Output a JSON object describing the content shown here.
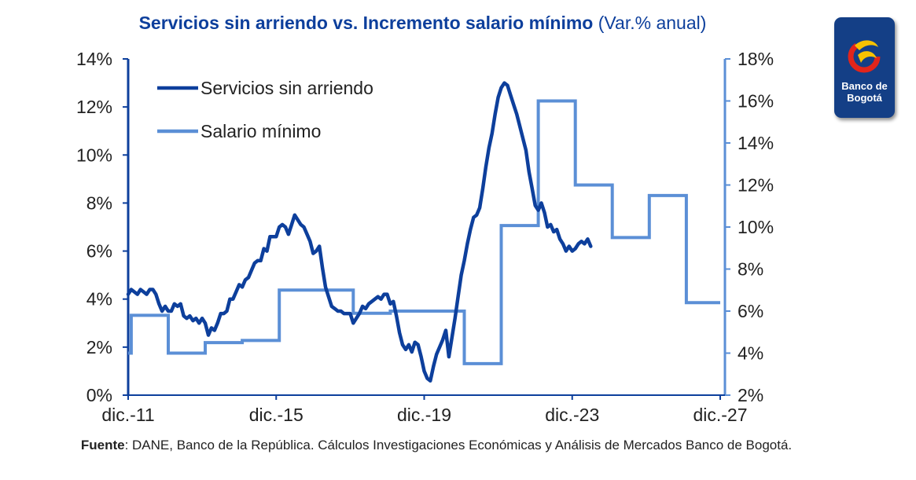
{
  "title": {
    "main": "Servicios sin arriendo vs. Incremento salario mínimo",
    "suffix": "(Var.% anual)"
  },
  "logo": {
    "name": "Banco de\nBogotá",
    "colors": {
      "background": "#143f86",
      "red": "#e1251b",
      "yellow": "#f7c200"
    }
  },
  "source": {
    "label": "Fuente",
    "text": ": DANE, Banco de la República. Cálculos Investigaciones Económicas y Análisis de Mercados Banco de Bogotá."
  },
  "chart_data": {
    "type": "line",
    "x_ticks": [
      "dic.-11",
      "dic.-15",
      "dic.-19",
      "dic.-23",
      "dic.-27"
    ],
    "x_range": [
      "2011-12",
      "2027-12"
    ],
    "y_left": {
      "ticks": [
        "0%",
        "2%",
        "4%",
        "6%",
        "8%",
        "10%",
        "12%",
        "14%"
      ],
      "range": [
        0,
        14
      ]
    },
    "y_right": {
      "ticks": [
        "2%",
        "4%",
        "6%",
        "8%",
        "10%",
        "12%",
        "14%",
        "16%",
        "18%"
      ],
      "range": [
        2,
        18
      ]
    },
    "legend": {
      "position": "top-left",
      "entries": [
        "Servicios sin arriendo",
        "Salario mínimo"
      ]
    },
    "grid": false,
    "colors": {
      "servicios": "#0d3f9c",
      "salario": "#5b8fd6",
      "axis_left": "#0d3f9c",
      "axis_right": "#5b8fd6"
    },
    "series": [
      {
        "name": "Servicios sin arriendo",
        "axis": "left",
        "points": [
          [
            "2011-12",
            4.2
          ],
          [
            "2012-01",
            4.4
          ],
          [
            "2012-02",
            4.3
          ],
          [
            "2012-03",
            4.2
          ],
          [
            "2012-04",
            4.4
          ],
          [
            "2012-05",
            4.3
          ],
          [
            "2012-06",
            4.2
          ],
          [
            "2012-07",
            4.4
          ],
          [
            "2012-08",
            4.4
          ],
          [
            "2012-09",
            4.2
          ],
          [
            "2012-10",
            3.8
          ],
          [
            "2012-11",
            3.5
          ],
          [
            "2012-12",
            3.7
          ],
          [
            "2013-01",
            3.5
          ],
          [
            "2013-02",
            3.5
          ],
          [
            "2013-03",
            3.8
          ],
          [
            "2013-04",
            3.7
          ],
          [
            "2013-05",
            3.8
          ],
          [
            "2013-06",
            3.3
          ],
          [
            "2013-07",
            3.2
          ],
          [
            "2013-08",
            3.3
          ],
          [
            "2013-09",
            3.1
          ],
          [
            "2013-10",
            3.2
          ],
          [
            "2013-11",
            3.0
          ],
          [
            "2013-12",
            3.2
          ],
          [
            "2014-01",
            3.0
          ],
          [
            "2014-02",
            2.5
          ],
          [
            "2014-03",
            2.8
          ],
          [
            "2014-04",
            2.7
          ],
          [
            "2014-05",
            3.0
          ],
          [
            "2014-06",
            3.4
          ],
          [
            "2014-07",
            3.4
          ],
          [
            "2014-08",
            3.5
          ],
          [
            "2014-09",
            4.0
          ],
          [
            "2014-10",
            4.0
          ],
          [
            "2014-11",
            4.3
          ],
          [
            "2014-12",
            4.6
          ],
          [
            "2015-01",
            4.5
          ],
          [
            "2015-02",
            4.8
          ],
          [
            "2015-03",
            4.9
          ],
          [
            "2015-04",
            5.2
          ],
          [
            "2015-05",
            5.5
          ],
          [
            "2015-06",
            5.6
          ],
          [
            "2015-07",
            5.6
          ],
          [
            "2015-08",
            6.1
          ],
          [
            "2015-09",
            6.0
          ],
          [
            "2015-10",
            6.6
          ],
          [
            "2015-11",
            6.6
          ],
          [
            "2015-12",
            6.6
          ],
          [
            "2016-01",
            7.0
          ],
          [
            "2016-02",
            7.1
          ],
          [
            "2016-03",
            7.0
          ],
          [
            "2016-04",
            6.7
          ],
          [
            "2016-05",
            7.1
          ],
          [
            "2016-06",
            7.5
          ],
          [
            "2016-07",
            7.3
          ],
          [
            "2016-08",
            7.1
          ],
          [
            "2016-09",
            7.0
          ],
          [
            "2016-10",
            6.7
          ],
          [
            "2016-11",
            6.4
          ],
          [
            "2016-12",
            5.9
          ],
          [
            "2017-01",
            6.0
          ],
          [
            "2017-02",
            6.2
          ],
          [
            "2017-03",
            5.3
          ],
          [
            "2017-04",
            4.5
          ],
          [
            "2017-05",
            4.1
          ],
          [
            "2017-06",
            3.7
          ],
          [
            "2017-07",
            3.6
          ],
          [
            "2017-08",
            3.5
          ],
          [
            "2017-09",
            3.5
          ],
          [
            "2017-10",
            3.4
          ],
          [
            "2017-11",
            3.4
          ],
          [
            "2017-12",
            3.4
          ],
          [
            "2018-01",
            3.0
          ],
          [
            "2018-02",
            3.2
          ],
          [
            "2018-03",
            3.4
          ],
          [
            "2018-04",
            3.7
          ],
          [
            "2018-05",
            3.6
          ],
          [
            "2018-06",
            3.8
          ],
          [
            "2018-07",
            3.9
          ],
          [
            "2018-08",
            4.0
          ],
          [
            "2018-09",
            4.1
          ],
          [
            "2018-10",
            4.0
          ],
          [
            "2018-11",
            4.2
          ],
          [
            "2018-12",
            4.2
          ],
          [
            "2019-01",
            3.8
          ],
          [
            "2019-02",
            3.9
          ],
          [
            "2019-03",
            3.3
          ],
          [
            "2019-04",
            2.6
          ],
          [
            "2019-05",
            2.1
          ],
          [
            "2019-06",
            1.9
          ],
          [
            "2019-07",
            2.1
          ],
          [
            "2019-08",
            1.8
          ],
          [
            "2019-09",
            2.2
          ],
          [
            "2019-10",
            2.1
          ],
          [
            "2019-11",
            1.6
          ],
          [
            "2019-12",
            1.0
          ],
          [
            "2020-01",
            0.7
          ],
          [
            "2020-02",
            0.6
          ],
          [
            "2020-03",
            1.2
          ],
          [
            "2020-04",
            1.7
          ],
          [
            "2020-05",
            2.0
          ],
          [
            "2020-06",
            2.3
          ],
          [
            "2020-07",
            2.7
          ],
          [
            "2020-08",
            1.6
          ],
          [
            "2020-09",
            2.4
          ],
          [
            "2020-10",
            3.2
          ],
          [
            "2020-11",
            4.1
          ],
          [
            "2020-12",
            5.0
          ],
          [
            "2021-01",
            5.6
          ],
          [
            "2021-02",
            6.3
          ],
          [
            "2021-03",
            6.9
          ],
          [
            "2021-04",
            7.4
          ],
          [
            "2021-05",
            7.5
          ],
          [
            "2021-06",
            7.8
          ],
          [
            "2021-07",
            8.6
          ],
          [
            "2021-08",
            9.5
          ],
          [
            "2021-09",
            10.3
          ],
          [
            "2021-10",
            10.9
          ],
          [
            "2021-11",
            11.7
          ],
          [
            "2021-12",
            12.4
          ],
          [
            "2022-01",
            12.8
          ],
          [
            "2022-02",
            13.0
          ],
          [
            "2022-03",
            12.9
          ],
          [
            "2022-04",
            12.5
          ],
          [
            "2022-05",
            12.1
          ],
          [
            "2022-06",
            11.7
          ],
          [
            "2022-07",
            11.2
          ],
          [
            "2022-08",
            10.7
          ],
          [
            "2022-09",
            10.2
          ],
          [
            "2022-10",
            9.3
          ],
          [
            "2022-11",
            8.6
          ],
          [
            "2022-12",
            7.9
          ],
          [
            "2023-01",
            7.7
          ],
          [
            "2023-02",
            8.0
          ],
          [
            "2023-03",
            7.6
          ],
          [
            "2023-04",
            7.0
          ],
          [
            "2023-05",
            7.1
          ],
          [
            "2023-06",
            6.8
          ],
          [
            "2023-07",
            6.9
          ],
          [
            "2023-08",
            6.5
          ],
          [
            "2023-09",
            6.3
          ],
          [
            "2023-10",
            6.0
          ],
          [
            "2023-11",
            6.2
          ],
          [
            "2023-12",
            6.0
          ],
          [
            "2024-01",
            6.1
          ],
          [
            "2024-02",
            6.3
          ],
          [
            "2024-03",
            6.4
          ],
          [
            "2024-04",
            6.3
          ],
          [
            "2024-05",
            6.5
          ],
          [
            "2024-06",
            6.2
          ]
        ]
      },
      {
        "name": "Salario mínimo",
        "axis": "right",
        "steps": [
          [
            "2011-12",
            4.0
          ],
          [
            "2012-01",
            5.8
          ],
          [
            "2013-01",
            4.0
          ],
          [
            "2014-01",
            4.5
          ],
          [
            "2015-01",
            4.6
          ],
          [
            "2016-01",
            7.0
          ],
          [
            "2017-01",
            7.0
          ],
          [
            "2018-01",
            5.9
          ],
          [
            "2019-01",
            6.0
          ],
          [
            "2020-01",
            6.0
          ],
          [
            "2021-01",
            3.5
          ],
          [
            "2022-01",
            10.07
          ],
          [
            "2023-01",
            16.0
          ],
          [
            "2024-01",
            12.0
          ],
          [
            "2025-01",
            9.5
          ],
          [
            "2026-01",
            11.5
          ],
          [
            "2027-01",
            6.4
          ],
          [
            "2027-12",
            6.4
          ]
        ]
      }
    ]
  }
}
